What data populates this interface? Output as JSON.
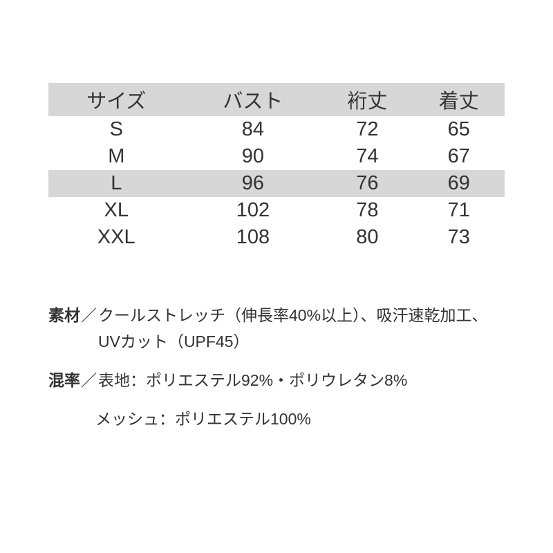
{
  "table": {
    "columns": [
      "サイズ",
      "バスト",
      "裄丈",
      "着丈"
    ],
    "rows": [
      [
        "S",
        "84",
        "72",
        "65"
      ],
      [
        "M",
        "90",
        "74",
        "67"
      ],
      [
        "L",
        "96",
        "76",
        "69"
      ],
      [
        "XL",
        "102",
        "78",
        "71"
      ],
      [
        "XXL",
        "108",
        "80",
        "73"
      ]
    ],
    "header_bg": "#d7d7d7",
    "stripe_bg": "#d7d7d7",
    "stripe_rows": [
      2
    ],
    "font_size": 29,
    "text_color": "#333333"
  },
  "specs": {
    "separator": "／",
    "items": [
      {
        "label": "素材",
        "value": "クールストレッチ（伸長率40%以上）、吸汗速乾加工、UVカット（UPF45）"
      },
      {
        "label": "混率",
        "value": "表地：ポリエステル92%・ポリウレタン8%",
        "subvalue": "メッシュ：ポリエステル100%"
      }
    ],
    "font_size": 23,
    "label_weight": 700
  },
  "background_color": "#ffffff"
}
